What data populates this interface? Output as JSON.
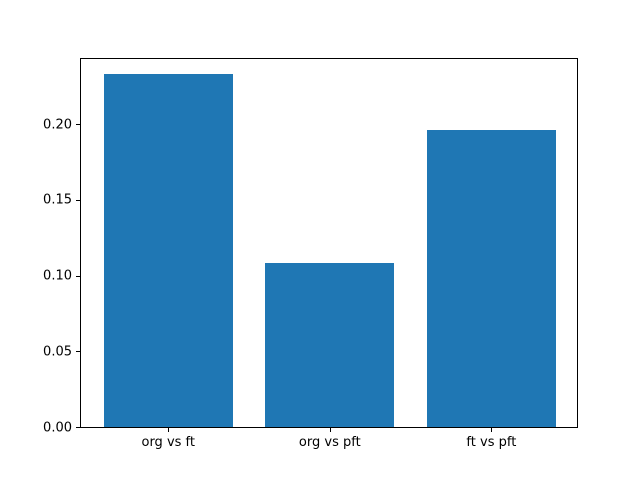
{
  "figure": {
    "background": "#ffffff"
  },
  "chart_data": {
    "type": "bar",
    "title": "",
    "xlabel": "",
    "ylabel": "",
    "categories": [
      "org vs ft",
      "org vs pft",
      "ft vs pft"
    ],
    "values": [
      0.233,
      0.108,
      0.196
    ],
    "bar_color": "#1f77b4",
    "bar_width": 0.8,
    "xlim": [
      -0.54,
      2.53
    ],
    "ylim": [
      0,
      0.243
    ],
    "yticks": [
      0,
      0.05,
      0.1,
      0.15,
      0.2
    ],
    "ytick_labels": [
      "0.00",
      "0.05",
      "0.10",
      "0.15",
      "0.20"
    ],
    "grid": false,
    "legend": null,
    "spine_color": "#000000",
    "tick_color": "#000000",
    "text_color": "#000000"
  }
}
